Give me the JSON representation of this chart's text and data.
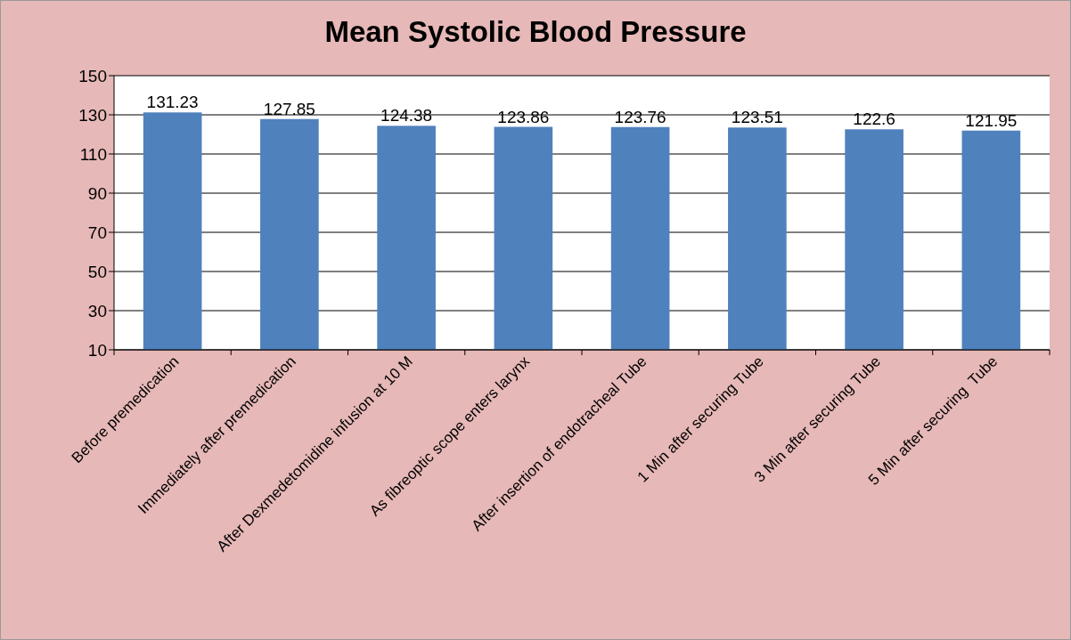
{
  "chart_data": {
    "type": "bar",
    "title": "Mean Systolic Blood Pressure",
    "categories": [
      "Before premedication",
      "Immediately after premedication",
      "After Dexmedetomidine infusion at 10 M",
      "As fibreoptic scope enters larynx",
      "After insertion of endotracheal Tube",
      "1 Min after securing Tube",
      "3 Min after securing Tube",
      "5 Min after securing  Tube"
    ],
    "values": [
      131.23,
      127.85,
      124.38,
      123.86,
      123.76,
      123.51,
      122.6,
      121.95
    ],
    "color": "#4f81bd",
    "ylim": [
      10,
      150
    ],
    "yticks": [
      10,
      30,
      50,
      70,
      90,
      110,
      130,
      150
    ],
    "grid": "y",
    "data_labels": true
  }
}
